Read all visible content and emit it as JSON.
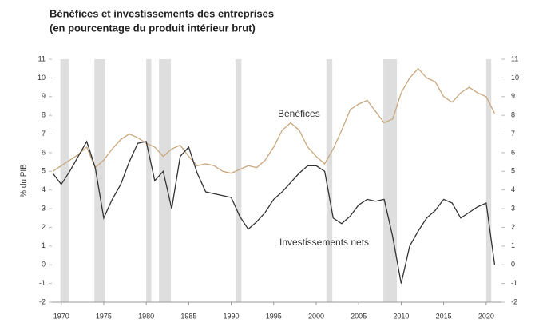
{
  "chart_data": {
    "type": "line",
    "title": "Bénéfices et investissements des entreprises",
    "subtitle": "(en pourcentage du produit intérieur brut)",
    "ylabel": "% du PIB",
    "x": [
      1969,
      1970,
      1971,
      1972,
      1973,
      1974,
      1975,
      1976,
      1977,
      1978,
      1979,
      1980,
      1981,
      1982,
      1983,
      1984,
      1985,
      1986,
      1987,
      1988,
      1989,
      1990,
      1991,
      1992,
      1993,
      1994,
      1995,
      1996,
      1997,
      1998,
      1999,
      2000,
      2001,
      2002,
      2003,
      2004,
      2005,
      2006,
      2007,
      2008,
      2009,
      2010,
      2011,
      2012,
      2013,
      2014,
      2015,
      2016,
      2017,
      2018,
      2019,
      2020,
      2021
    ],
    "series": [
      {
        "name": "Bénéfices",
        "color": "#c9a77c",
        "values": [
          5.0,
          5.3,
          5.6,
          5.9,
          6.3,
          5.2,
          5.6,
          6.2,
          6.7,
          7.0,
          6.8,
          6.5,
          6.3,
          5.8,
          6.2,
          6.4,
          5.8,
          5.3,
          5.4,
          5.3,
          5.0,
          4.9,
          5.1,
          5.3,
          5.2,
          5.6,
          6.3,
          7.2,
          7.6,
          7.2,
          6.3,
          5.8,
          5.4,
          6.2,
          7.2,
          8.3,
          8.6,
          8.8,
          8.2,
          7.6,
          7.8,
          9.2,
          10.0,
          10.5,
          10.0,
          9.8,
          9.0,
          8.7,
          9.2,
          9.5,
          9.2,
          9.0,
          8.1
        ]
      },
      {
        "name": "Investissements nets",
        "color": "#333333",
        "values": [
          4.9,
          4.3,
          5.0,
          5.8,
          6.6,
          5.2,
          2.5,
          3.5,
          4.3,
          5.5,
          6.5,
          6.6,
          4.5,
          5.0,
          3.0,
          5.8,
          6.3,
          4.9,
          3.9,
          3.8,
          3.7,
          3.6,
          2.6,
          1.9,
          2.3,
          2.8,
          3.5,
          3.9,
          4.4,
          4.9,
          5.3,
          5.3,
          5.0,
          2.5,
          2.2,
          2.6,
          3.2,
          3.5,
          3.4,
          3.5,
          1.5,
          -1.0,
          1.0,
          1.8,
          2.5,
          2.9,
          3.5,
          3.3,
          2.5,
          2.8,
          3.1,
          3.3,
          0.0
        ]
      }
    ],
    "shaded_periods": [
      [
        1969.9,
        1970.9
      ],
      [
        1973.9,
        1975.2
      ],
      [
        1980.0,
        1980.6
      ],
      [
        1981.5,
        1982.9
      ],
      [
        1990.5,
        1991.2
      ],
      [
        2001.2,
        2001.9
      ],
      [
        2007.9,
        2009.5
      ],
      [
        2020.0,
        2020.6
      ]
    ],
    "xlim": [
      1968.9,
      2021.8
    ],
    "xticks": [
      1970,
      1975,
      1980,
      1985,
      1990,
      1995,
      2000,
      2005,
      2010,
      2015,
      2020
    ],
    "ylim": [
      -2,
      11
    ],
    "yticks": [
      -2,
      -1,
      0,
      1,
      2,
      3,
      4,
      5,
      6,
      7,
      8,
      9,
      10,
      11
    ],
    "y2lim": [
      -2,
      11
    ],
    "y2ticks": [
      -2,
      -1,
      0,
      1,
      2,
      3,
      4,
      5,
      6,
      7,
      8,
      9,
      10,
      11
    ],
    "grid": false
  }
}
